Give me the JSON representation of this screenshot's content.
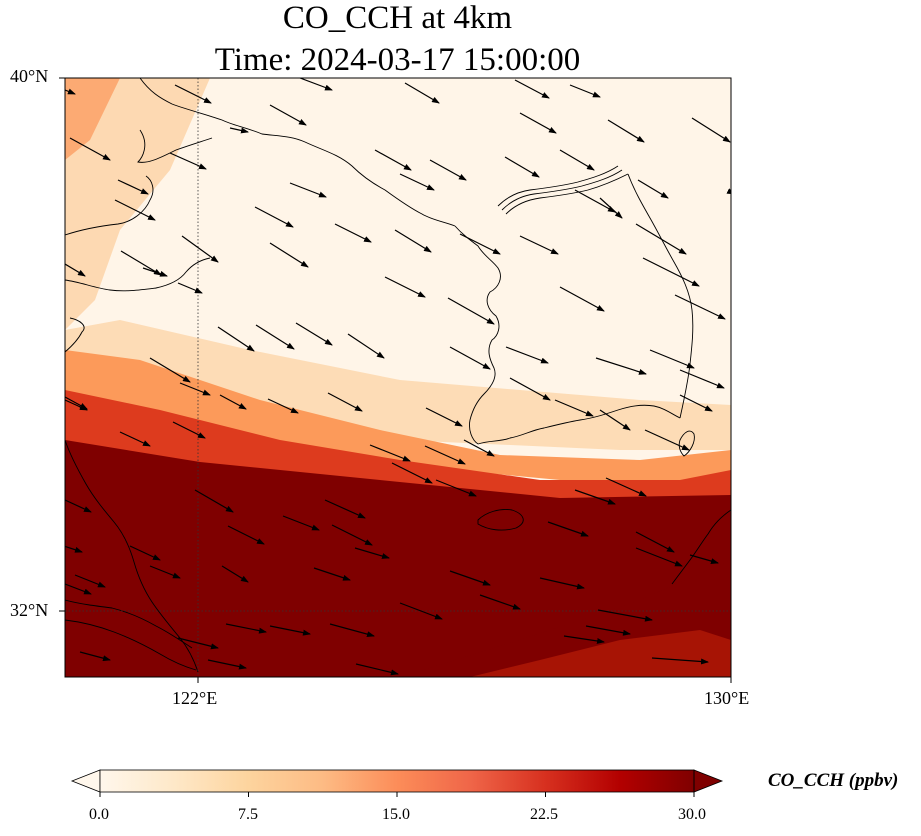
{
  "map": {
    "title_line1": "CO_CCH at 4km",
    "title_line2": "Time: 2024-03-17 15:00:00",
    "lat_labels": [
      "40°N",
      "32°N"
    ],
    "lon_labels": [
      "122°E",
      "130°E"
    ],
    "variable": "CO_CCH",
    "height": "4km",
    "time": "2024-03-17 15:00:00"
  },
  "colorbar": {
    "label": "CO_CCH (ppbv)",
    "ticks": [
      "0.0",
      "7.5",
      "15.0",
      "22.5",
      "30.0"
    ],
    "min": 0,
    "max": 30,
    "extend": "both",
    "colormap": [
      "#fff5eb",
      "#fee6ce",
      "#fdd0a2",
      "#fdae6b",
      "#fd8d3c",
      "#f16913",
      "#d94801",
      "#a63603",
      "#7f2704"
    ]
  }
}
